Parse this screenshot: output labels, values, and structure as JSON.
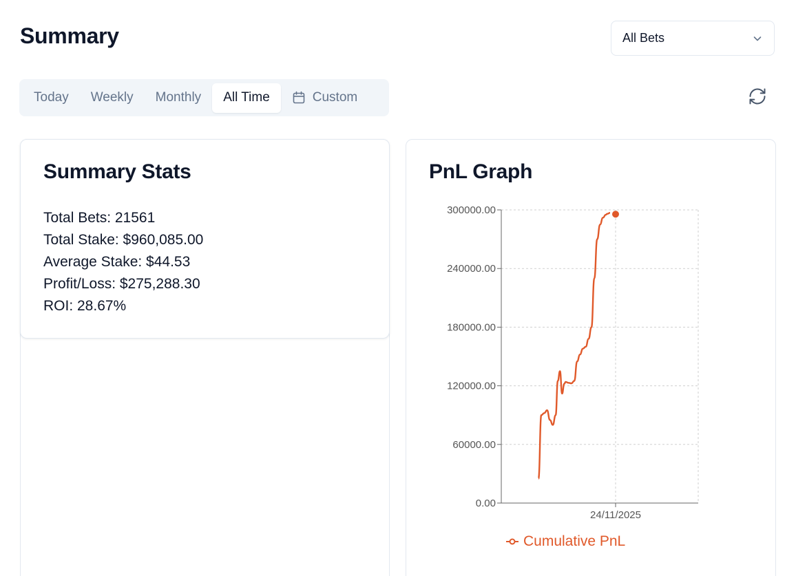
{
  "header": {
    "title": "Summary",
    "filter": {
      "selected": "All Bets",
      "icon": "chevron-down-icon"
    }
  },
  "tabs": [
    {
      "label": "Today",
      "active": false
    },
    {
      "label": "Weekly",
      "active": false
    },
    {
      "label": "Monthly",
      "active": false
    },
    {
      "label": "All Time",
      "active": true
    },
    {
      "label": "Custom",
      "active": false,
      "icon": "calendar-icon"
    }
  ],
  "refresh": {
    "icon": "refresh-icon"
  },
  "summary_stats": {
    "title": "Summary Stats",
    "lines": [
      "Total Bets: 21561",
      "Total Stake: $960,085.00",
      "Average Stake: $44.53",
      "Profit/Loss: $275,288.30",
      "ROI: 28.67%"
    ]
  },
  "pnl_graph": {
    "title": "PnL Graph",
    "legend_label": "Cumulative PnL",
    "color": "#e0592a"
  },
  "chart_data": {
    "type": "line",
    "title": "PnL Graph",
    "xlabel": "",
    "ylabel": "",
    "ylim": [
      0,
      300000
    ],
    "y_ticks": [
      "0.00",
      "60000.00",
      "120000.00",
      "180000.00",
      "240000.00",
      "300000.00"
    ],
    "x_ticks": [
      "24/11/2025"
    ],
    "grid": true,
    "legend": "bottom",
    "series": [
      {
        "name": "Cumulative PnL",
        "color": "#e0592a",
        "x": [
          0,
          0.04,
          0.08,
          0.12,
          0.16,
          0.2,
          0.24,
          0.27,
          0.3,
          0.33,
          0.36,
          0.38,
          0.42,
          0.46,
          0.5,
          0.54,
          0.58,
          0.62,
          0.66,
          0.7,
          0.74,
          0.78,
          0.82,
          0.86,
          0.9,
          0.94,
          0.96,
          1.0
        ],
        "values": [
          25000,
          90000,
          92000,
          95000,
          85000,
          80000,
          90000,
          125000,
          135000,
          112000,
          122000,
          124000,
          123000,
          122500,
          125000,
          145000,
          152000,
          158000,
          160000,
          168000,
          180000,
          230000,
          270000,
          285000,
          292000,
          295000,
          296000,
          297000
        ]
      }
    ]
  }
}
